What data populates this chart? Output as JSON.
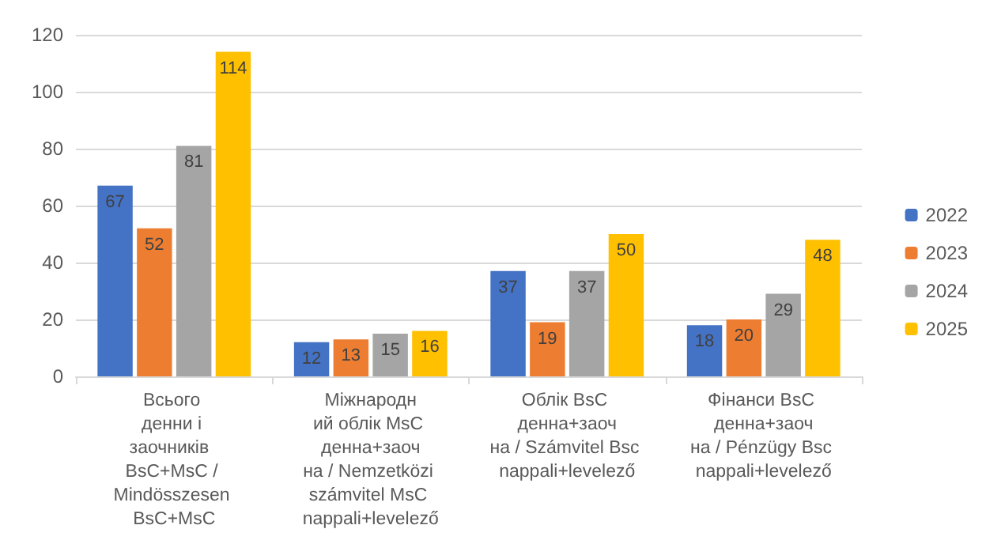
{
  "chart_data": {
    "type": "bar",
    "categories": [
      "Всього денни і заочників  BsC+MsC / Mindösszesen BsC+MsC",
      "Міжнародний облік MsC денна+заочна / Nemzetközi számvitel MsC nappali+levelező",
      "Облік BsC денна+заочна / Számvitel Bsc nappali+levelező",
      "Фінанси BsC денна+заочна / Pénzügy Bsc nappali+levelező"
    ],
    "series": [
      {
        "name": "2022",
        "color": "#4472c4",
        "values": [
          67,
          12,
          37,
          18
        ]
      },
      {
        "name": "2023",
        "color": "#ed7d31",
        "values": [
          52,
          13,
          19,
          20
        ]
      },
      {
        "name": "2024",
        "color": "#a5a5a5",
        "values": [
          81,
          15,
          37,
          29
        ]
      },
      {
        "name": "2025",
        "color": "#ffc000",
        "values": [
          114,
          16,
          50,
          48
        ]
      }
    ],
    "ylim": [
      0,
      120
    ],
    "yticks": [
      0,
      20,
      40,
      60,
      80,
      100,
      120
    ],
    "grid": "y",
    "legend": "right",
    "data_labels": true
  }
}
